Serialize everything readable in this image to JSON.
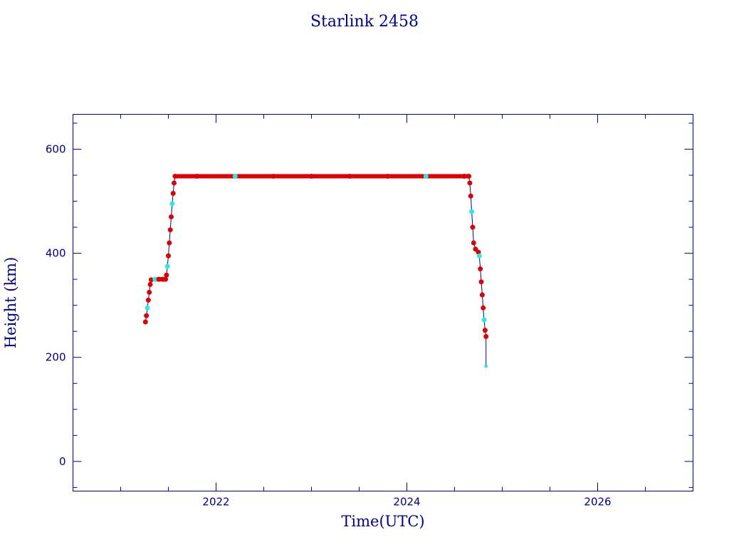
{
  "chart_data": {
    "type": "scatter",
    "title": "Starlink 2458",
    "xlabel": "Time(UTC)",
    "ylabel": "Height (km)",
    "xlim": [
      2020.5,
      2027.0
    ],
    "ylim": [
      -57,
      667
    ],
    "x_ticks": [
      2022,
      2024,
      2026
    ],
    "y_ticks": [
      0,
      200,
      400,
      600
    ],
    "grid": false,
    "colors": {
      "axis": "#00008b",
      "points": "#dd0000",
      "highlight": "#33e6e6",
      "line": "#0000aa"
    },
    "series": [
      {
        "values": [
          [
            2021.26,
            268
          ],
          [
            2021.27,
            280
          ],
          [
            2021.28,
            295
          ],
          [
            2021.29,
            310
          ],
          [
            2021.3,
            325
          ],
          [
            2021.31,
            340
          ],
          [
            2021.32,
            349
          ],
          [
            2021.36,
            350
          ],
          [
            2021.4,
            350
          ],
          [
            2021.44,
            350
          ],
          [
            2021.47,
            350
          ],
          [
            2021.48,
            358
          ],
          [
            2021.49,
            375
          ],
          [
            2021.5,
            395
          ],
          [
            2021.51,
            420
          ],
          [
            2021.52,
            445
          ],
          [
            2021.53,
            470
          ],
          [
            2021.54,
            495
          ],
          [
            2021.55,
            515
          ],
          [
            2021.56,
            535
          ],
          [
            2021.57,
            548
          ],
          [
            2021.8,
            548
          ],
          [
            2022.2,
            548
          ],
          [
            2022.6,
            548
          ],
          [
            2023.0,
            548
          ],
          [
            2023.4,
            548
          ],
          [
            2023.8,
            548
          ],
          [
            2024.2,
            548
          ],
          [
            2024.6,
            548
          ],
          [
            2024.65,
            548
          ],
          [
            2024.66,
            535
          ],
          [
            2024.67,
            510
          ],
          [
            2024.68,
            480
          ],
          [
            2024.69,
            450
          ],
          [
            2024.7,
            420
          ],
          [
            2024.72,
            408
          ],
          [
            2024.75,
            402
          ],
          [
            2024.76,
            395
          ],
          [
            2024.77,
            370
          ],
          [
            2024.78,
            345
          ],
          [
            2024.79,
            320
          ],
          [
            2024.8,
            295
          ],
          [
            2024.81,
            272
          ],
          [
            2024.82,
            252
          ],
          [
            2024.83,
            240
          ],
          [
            2024.83,
            183
          ]
        ]
      }
    ]
  }
}
